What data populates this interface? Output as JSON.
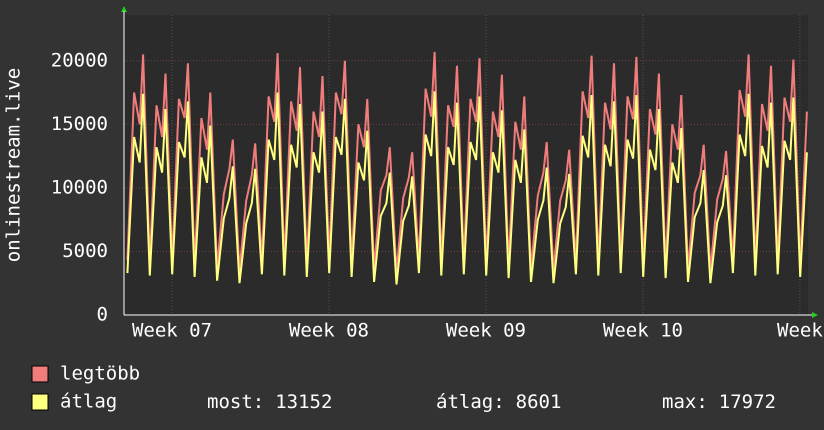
{
  "chart_data": {
    "type": "line",
    "ylabel": "onlinestream.live",
    "ylim": [
      0,
      23600
    ],
    "yticks": [
      0,
      5000,
      10000,
      15000,
      20000
    ],
    "xlim": [
      0,
      30.5
    ],
    "xticks": [
      {
        "value": 2.14,
        "label": "Week 07"
      },
      {
        "value": 9.14,
        "label": "Week 08"
      },
      {
        "value": 16.14,
        "label": "Week 09"
      },
      {
        "value": 23.14,
        "label": "Week 10"
      },
      {
        "value": 30.14,
        "label": "Week"
      }
    ],
    "grid": true,
    "x": [
      0.15,
      0.45,
      0.7,
      0.85,
      1.15,
      1.45,
      1.7,
      1.85,
      2.15,
      2.45,
      2.7,
      2.85,
      3.15,
      3.45,
      3.7,
      3.85,
      4.15,
      4.45,
      4.7,
      4.85,
      5.15,
      5.45,
      5.7,
      5.85,
      6.15,
      6.45,
      6.7,
      6.85,
      7.15,
      7.45,
      7.7,
      7.85,
      8.15,
      8.45,
      8.7,
      8.85,
      9.15,
      9.45,
      9.7,
      9.85,
      10.15,
      10.45,
      10.7,
      10.85,
      11.15,
      11.45,
      11.7,
      11.85,
      12.15,
      12.45,
      12.7,
      12.85,
      13.15,
      13.45,
      13.7,
      13.85,
      14.15,
      14.45,
      14.7,
      14.85,
      15.15,
      15.45,
      15.7,
      15.85,
      16.15,
      16.45,
      16.7,
      16.85,
      17.15,
      17.45,
      17.7,
      17.85,
      18.15,
      18.45,
      18.7,
      18.85,
      19.15,
      19.45,
      19.7,
      19.85,
      20.15,
      20.45,
      20.7,
      20.85,
      21.15,
      21.45,
      21.7,
      21.85,
      22.15,
      22.45,
      22.7,
      22.85,
      23.15,
      23.45,
      23.7,
      23.85,
      24.15,
      24.45,
      24.7,
      24.85,
      25.15,
      25.45,
      25.7,
      25.85,
      26.15,
      26.45,
      26.7,
      26.85,
      27.15,
      27.45,
      27.7,
      27.85,
      28.15,
      28.45,
      28.7,
      28.85,
      29.15,
      29.45,
      29.7,
      29.85,
      30.15,
      30.45
    ],
    "series": [
      {
        "name": "legtöbb",
        "color": "#f07c7c",
        "values": [
          4300,
          17500,
          15000,
          20500,
          4100,
          16500,
          14000,
          19000,
          4200,
          17000,
          15500,
          19800,
          4000,
          15500,
          13000,
          17500,
          3700,
          9500,
          11500,
          13800,
          3500,
          9000,
          11000,
          13500,
          4200,
          17200,
          15200,
          20600,
          4100,
          16800,
          14500,
          19500,
          4000,
          16000,
          14000,
          18800,
          4300,
          17500,
          15800,
          20000,
          4000,
          15000,
          13200,
          17000,
          3600,
          9800,
          11000,
          13200,
          3400,
          9200,
          10800,
          12800,
          4300,
          17800,
          15600,
          20700,
          4100,
          16500,
          14800,
          19600,
          4200,
          17000,
          15200,
          20200,
          4100,
          16000,
          14000,
          18900,
          3900,
          15200,
          13000,
          17200,
          3600,
          9400,
          11200,
          13600,
          3500,
          9000,
          10600,
          13000,
          4200,
          17600,
          15500,
          20400,
          4100,
          16700,
          14600,
          19800,
          4300,
          17200,
          15400,
          20300,
          4000,
          16200,
          14200,
          19000,
          3900,
          15000,
          13000,
          17300,
          3600,
          9600,
          11000,
          13400,
          3500,
          9100,
          10700,
          12900,
          4300,
          17700,
          15600,
          20500,
          4100,
          16600,
          14500,
          19600,
          4200,
          17100,
          15200,
          20100,
          4000,
          16000
        ]
      },
      {
        "name": "átlag",
        "color": "#ffff80",
        "values": [
          3300,
          14000,
          12000,
          17400,
          3100,
          13200,
          11200,
          16200,
          3200,
          13600,
          12400,
          16800,
          3000,
          12400,
          10400,
          14900,
          2700,
          7600,
          9200,
          11700,
          2500,
          7200,
          8800,
          11500,
          3200,
          13800,
          12200,
          17500,
          3100,
          13400,
          11600,
          16600,
          3000,
          12800,
          11200,
          16000,
          3300,
          14000,
          12600,
          17000,
          3000,
          12000,
          10600,
          14500,
          2600,
          7800,
          8800,
          11200,
          2400,
          7400,
          8600,
          10900,
          3300,
          14200,
          12500,
          17600,
          3100,
          13200,
          11800,
          16700,
          3200,
          13600,
          12200,
          17200,
          3100,
          12800,
          11200,
          16100,
          2900,
          12200,
          10400,
          14600,
          2600,
          7500,
          9000,
          11600,
          2500,
          7200,
          8500,
          11100,
          3200,
          14100,
          12400,
          17300,
          3100,
          13400,
          11700,
          16800,
          3300,
          13800,
          12300,
          17300,
          3000,
          13000,
          11400,
          16200,
          2900,
          12000,
          10400,
          14700,
          2600,
          7700,
          8800,
          11400,
          2500,
          7300,
          8600,
          11000,
          3300,
          14200,
          12500,
          17400,
          3100,
          13300,
          11600,
          16700,
          3200,
          13700,
          12200,
          17100,
          3000,
          12800
        ]
      }
    ],
    "stats": [
      {
        "label": "most:",
        "value": 13152
      },
      {
        "label": "átlag:",
        "value": 8601
      },
      {
        "label": "max:",
        "value": 17972
      }
    ]
  }
}
